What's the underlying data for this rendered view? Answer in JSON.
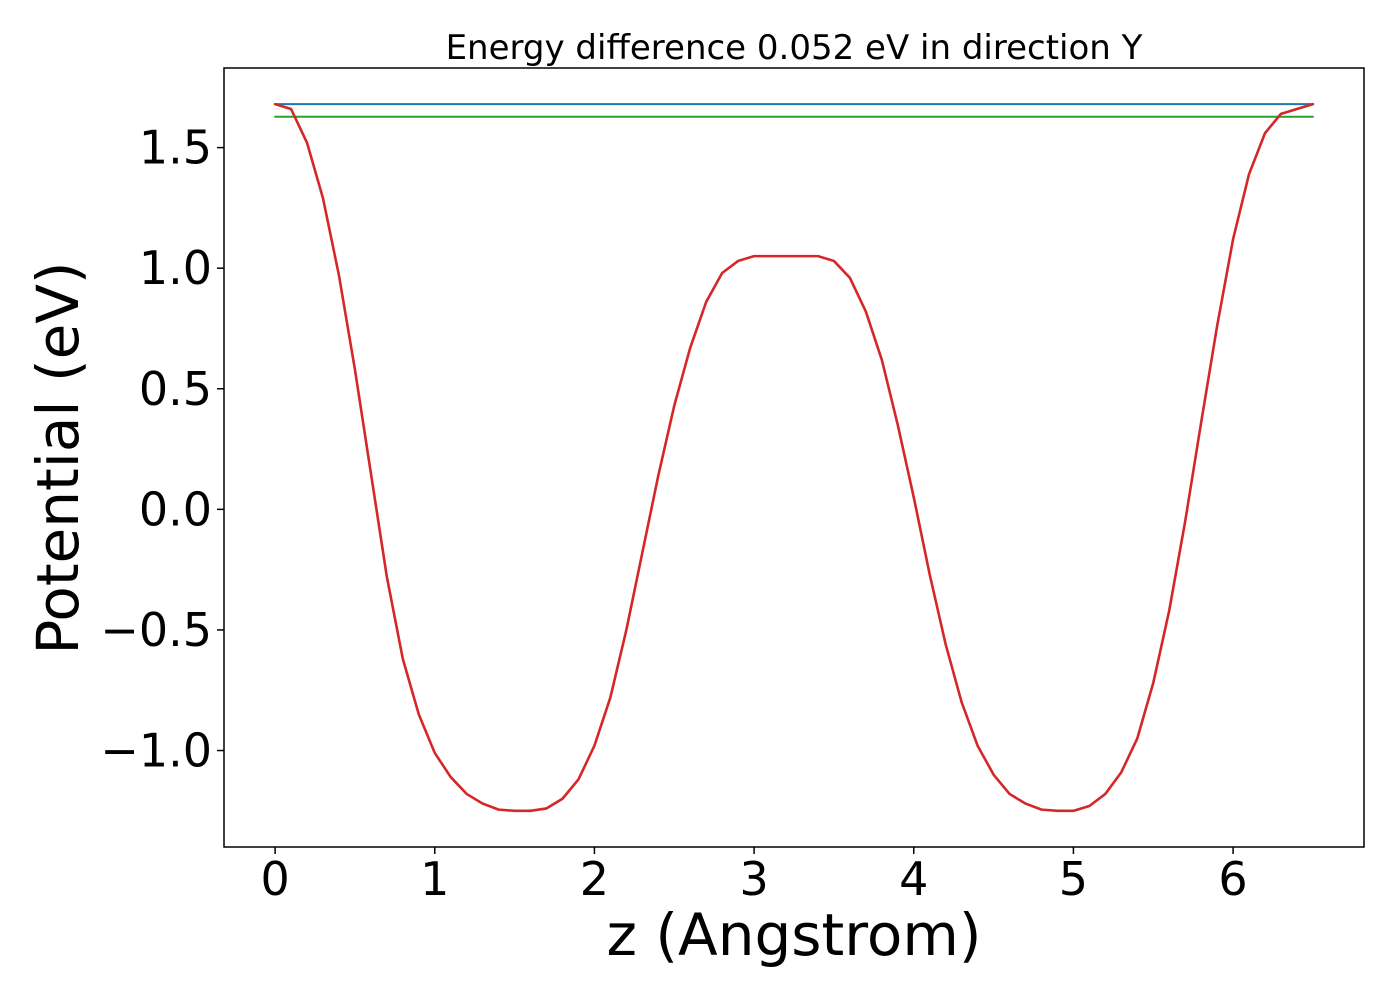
{
  "chart_data": {
    "type": "line",
    "title": "Energy difference 0.052 eV in direction Y",
    "xlabel": "z (Angstrom)",
    "ylabel": "Potential (eV)",
    "xlim": [
      -0.32,
      6.82
    ],
    "ylim": [
      -1.4,
      1.83
    ],
    "xticks": [
      0,
      1,
      2,
      3,
      4,
      5,
      6
    ],
    "xtick_labels": [
      "0",
      "1",
      "2",
      "3",
      "4",
      "5",
      "6"
    ],
    "yticks": [
      -1.0,
      -0.5,
      0.0,
      0.5,
      1.0,
      1.5
    ],
    "ytick_labels": [
      "−1.0",
      "−0.5",
      "0.0",
      "0.5",
      "1.0",
      "1.5"
    ],
    "grid": false,
    "series": [
      {
        "color": "#1f77b4",
        "x": [
          0,
          6.5
        ],
        "y": [
          1.68,
          1.68
        ]
      },
      {
        "color": "#2ca02c",
        "x": [
          0,
          6.5
        ],
        "y": [
          1.628,
          1.628
        ]
      },
      {
        "color": "#d62728",
        "x": [
          0,
          0.1,
          0.2,
          0.3,
          0.4,
          0.5,
          0.6,
          0.7,
          0.8,
          0.9,
          1.0,
          1.1,
          1.2,
          1.3,
          1.4,
          1.5,
          1.6,
          1.7,
          1.8,
          1.9,
          2.0,
          2.1,
          2.2,
          2.3,
          2.4,
          2.5,
          2.6,
          2.7,
          2.8,
          2.9,
          3.0,
          3.1,
          3.2,
          3.3,
          3.4,
          3.5,
          3.6,
          3.7,
          3.8,
          3.9,
          4.0,
          4.1,
          4.2,
          4.3,
          4.4,
          4.5,
          4.6,
          4.7,
          4.8,
          4.9,
          5.0,
          5.1,
          5.2,
          5.3,
          5.4,
          5.5,
          5.6,
          5.7,
          5.8,
          5.9,
          6.0,
          6.1,
          6.2,
          6.3,
          6.4,
          6.5
        ],
        "y": [
          1.68,
          1.66,
          1.52,
          1.29,
          0.97,
          0.58,
          0.15,
          -0.28,
          -0.62,
          -0.85,
          -1.01,
          -1.11,
          -1.18,
          -1.22,
          -1.245,
          -1.25,
          -1.25,
          -1.24,
          -1.2,
          -1.12,
          -0.98,
          -0.78,
          -0.5,
          -0.18,
          0.14,
          0.43,
          0.67,
          0.86,
          0.98,
          1.03,
          1.05,
          1.05,
          1.05,
          1.05,
          1.05,
          1.03,
          0.96,
          0.82,
          0.62,
          0.35,
          0.05,
          -0.27,
          -0.56,
          -0.8,
          -0.98,
          -1.1,
          -1.18,
          -1.22,
          -1.245,
          -1.25,
          -1.25,
          -1.23,
          -1.18,
          -1.09,
          -0.95,
          -0.72,
          -0.42,
          -0.05,
          0.36,
          0.76,
          1.12,
          1.39,
          1.56,
          1.64,
          1.66,
          1.68
        ]
      }
    ]
  }
}
